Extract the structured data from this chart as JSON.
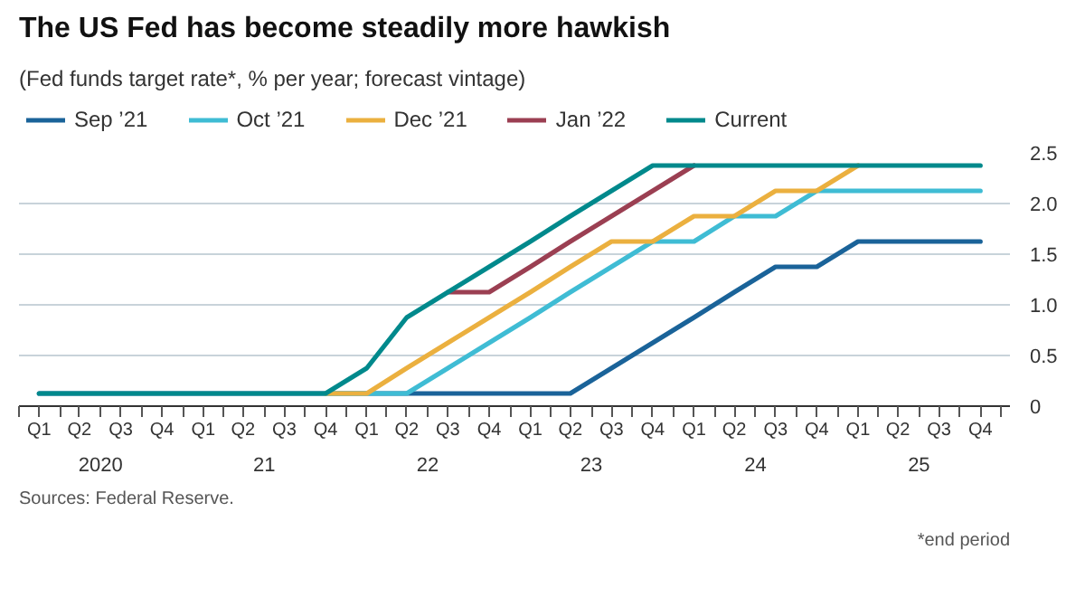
{
  "chart_data": {
    "type": "line",
    "title": "The US Fed has become steadily more hawkish",
    "subtitle": "(Fed funds target rate*, % per year; forecast vintage)",
    "x": [
      "2020-02-15",
      "2020-05-15",
      "2020-08-15",
      "2020-11-15",
      "2021-02-15",
      "2021-05-15",
      "2021-08-15",
      "2021-11-15",
      "2022-02-15",
      "2022-05-15",
      "2022-08-15",
      "2022-11-15",
      "2023-02-15",
      "2023-05-15",
      "2023-08-15",
      "2023-11-15",
      "2024-02-15",
      "2024-05-15",
      "2024-08-15",
      "2024-11-15",
      "2025-02-15",
      "2025-05-15",
      "2025-08-15",
      "2025-11-15"
    ],
    "series": [
      {
        "name": "Sep ’21",
        "color": "#1a6399",
        "values": [
          0.125,
          0.125,
          0.125,
          0.125,
          0.125,
          0.125,
          0.125,
          0.125,
          0.125,
          0.125,
          0.125,
          0.125,
          0.125,
          0.125,
          0.375,
          0.625,
          0.875,
          1.125,
          1.375,
          1.375,
          1.625,
          1.625,
          1.625,
          1.625
        ]
      },
      {
        "name": "Oct ’21",
        "color": "#3fbcd4",
        "values": [
          null,
          null,
          null,
          null,
          null,
          null,
          null,
          0.125,
          0.125,
          0.125,
          0.375,
          0.625,
          0.875,
          1.125,
          1.375,
          1.625,
          1.625,
          1.875,
          1.875,
          2.125,
          2.125,
          2.125,
          2.125,
          2.125
        ]
      },
      {
        "name": "Dec ’21",
        "color": "#ebb03f",
        "values": [
          null,
          null,
          null,
          null,
          null,
          null,
          null,
          0.125,
          0.125,
          0.375,
          0.625,
          0.875,
          1.125,
          1.375,
          1.625,
          1.625,
          1.875,
          1.875,
          2.125,
          2.125,
          2.375,
          null,
          null,
          null
        ]
      },
      {
        "name": "Jan ’22",
        "color": "#9b3f52",
        "values": [
          null,
          null,
          null,
          null,
          null,
          null,
          null,
          null,
          null,
          null,
          1.125,
          1.125,
          1.375,
          1.625,
          1.875,
          2.125,
          2.375,
          null,
          null,
          null,
          null,
          null,
          null,
          null
        ]
      },
      {
        "name": "Current",
        "color": "#00898c",
        "values": [
          0.125,
          0.125,
          0.125,
          0.125,
          0.125,
          0.125,
          0.125,
          0.125,
          0.375,
          0.875,
          1.125,
          1.375,
          1.625,
          1.875,
          2.125,
          2.375,
          2.375,
          2.375,
          2.375,
          2.375,
          2.375,
          2.375,
          2.375,
          2.375
        ]
      }
    ],
    "xlim": [
      "2020-01-01",
      "2026-01-20"
    ],
    "xticks": [
      {
        "value": "2020-01-01",
        "label": null
      },
      {
        "value": "2020-02-15",
        "label": "Q1"
      },
      {
        "value": "2020-04-01",
        "label": null
      },
      {
        "value": "2020-05-15",
        "label": "Q2"
      },
      {
        "value": "2020-07-01",
        "label": null
      },
      {
        "value": "2020-08-15",
        "label": "Q3"
      },
      {
        "value": "2020-10-01",
        "label": null
      },
      {
        "value": "2020-11-15",
        "label": "Q4"
      },
      {
        "value": "2021-01-01",
        "label": null
      },
      {
        "value": "2021-02-15",
        "label": "Q1"
      },
      {
        "value": "2021-04-01",
        "label": null
      },
      {
        "value": "2021-05-15",
        "label": "Q2"
      },
      {
        "value": "2021-07-01",
        "label": null
      },
      {
        "value": "2021-08-15",
        "label": "Q3"
      },
      {
        "value": "2021-10-01",
        "label": null
      },
      {
        "value": "2021-11-15",
        "label": "Q4"
      },
      {
        "value": "2022-01-01",
        "label": null
      },
      {
        "value": "2022-02-15",
        "label": "Q1"
      },
      {
        "value": "2022-04-01",
        "label": null
      },
      {
        "value": "2022-05-15",
        "label": "Q2"
      },
      {
        "value": "2022-07-01",
        "label": null
      },
      {
        "value": "2022-08-15",
        "label": "Q3"
      },
      {
        "value": "2022-10-01",
        "label": null
      },
      {
        "value": "2022-11-15",
        "label": "Q4"
      },
      {
        "value": "2023-01-01",
        "label": null
      },
      {
        "value": "2023-02-15",
        "label": "Q1"
      },
      {
        "value": "2023-04-01",
        "label": null
      },
      {
        "value": "2023-05-15",
        "label": "Q2"
      },
      {
        "value": "2023-07-01",
        "label": null
      },
      {
        "value": "2023-08-15",
        "label": "Q3"
      },
      {
        "value": "2023-10-01",
        "label": null
      },
      {
        "value": "2023-11-15",
        "label": "Q4"
      },
      {
        "value": "2024-01-01",
        "label": null
      },
      {
        "value": "2024-02-15",
        "label": "Q1"
      },
      {
        "value": "2024-04-01",
        "label": null
      },
      {
        "value": "2024-05-15",
        "label": "Q2"
      },
      {
        "value": "2024-07-01",
        "label": null
      },
      {
        "value": "2024-08-15",
        "label": "Q3"
      },
      {
        "value": "2024-10-01",
        "label": null
      },
      {
        "value": "2024-11-15",
        "label": "Q4"
      },
      {
        "value": "2025-01-01",
        "label": null
      },
      {
        "value": "2025-02-15",
        "label": "Q1"
      },
      {
        "value": "2025-04-01",
        "label": null
      },
      {
        "value": "2025-05-15",
        "label": "Q2"
      },
      {
        "value": "2025-07-01",
        "label": null
      },
      {
        "value": "2025-08-15",
        "label": "Q3"
      },
      {
        "value": "2025-10-01",
        "label": null
      },
      {
        "value": "2025-11-15",
        "label": "Q4"
      },
      {
        "value": "2026-01-01",
        "label": null
      }
    ],
    "x2lim": [
      "2020-01-01",
      "2026-01-20"
    ],
    "x2ticks": [
      {
        "value": "2020-07-01",
        "label": "2020"
      },
      {
        "value": "2021-07-01",
        "label": "21"
      },
      {
        "value": "2022-07-01",
        "label": "22"
      },
      {
        "value": "2023-07-01",
        "label": "23"
      },
      {
        "value": "2024-07-01",
        "label": "24"
      },
      {
        "value": "2025-07-01",
        "label": "25"
      }
    ],
    "ylim": [
      0,
      2.5
    ],
    "yticks": [
      0,
      {
        "value": 0.5,
        "label": "0.5"
      },
      {
        "value": 1,
        "label": "1.0"
      },
      {
        "value": 1.5,
        "label": "1.5"
      },
      {
        "value": 2,
        "label": "2.0"
      },
      {
        "value": 2.5,
        "label": "2.5"
      }
    ],
    "grid": "y",
    "legend": "top",
    "annotations": [
      "Sources: Federal Reserve.",
      "*end period"
    ]
  }
}
